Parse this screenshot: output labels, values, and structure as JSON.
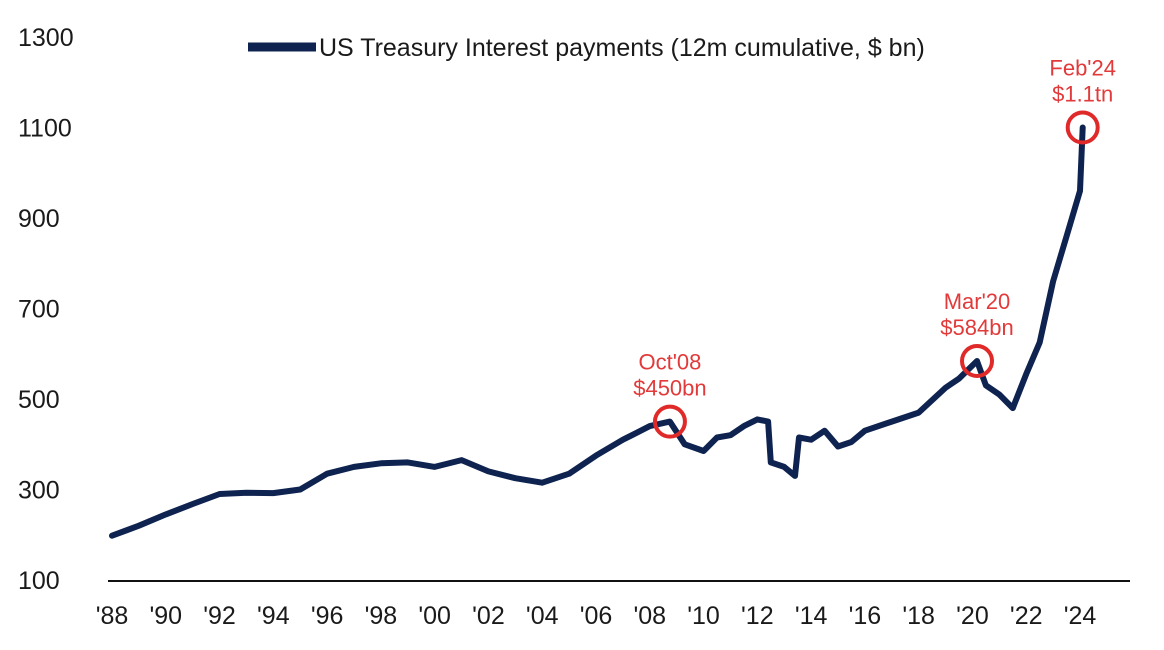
{
  "colors": {
    "line": "#0f2350",
    "annotation": "#e02a2a",
    "axis": "#111111",
    "text": "#1a1a1a"
  },
  "chart_data": {
    "type": "line",
    "title": "",
    "xlabel": "",
    "ylabel": "",
    "ylim": [
      100,
      1300
    ],
    "xlim": [
      1988,
      2024.5
    ],
    "grid": false,
    "legend_position": "top",
    "y_ticks": [
      "1300",
      "1100",
      "900",
      "700",
      "500",
      "300",
      "100"
    ],
    "x_ticks": [
      "'88",
      "'90",
      "'92",
      "'94",
      "'96",
      "'98",
      "'00",
      "'02",
      "'04",
      "'06",
      "'08",
      "'10",
      "'12",
      "'14",
      "'16",
      "'18",
      "'20",
      "'22",
      "'24"
    ],
    "series": [
      {
        "name": "US Treasury Interest payments (12m cumulative, $ bn)",
        "x": [
          1988.0,
          1989.0,
          1990.0,
          1991.0,
          1992.0,
          1993.0,
          1994.0,
          1995.0,
          1996.0,
          1997.0,
          1998.0,
          1999.0,
          2000.0,
          2001.0,
          2002.0,
          2003.0,
          2004.0,
          2005.0,
          2006.0,
          2007.0,
          2008.0,
          2008.75,
          2009.3,
          2010.0,
          2010.5,
          2011.0,
          2011.5,
          2012.0,
          2012.4,
          2012.5,
          2013.0,
          2013.4,
          2013.55,
          2014.0,
          2014.5,
          2015.0,
          2015.5,
          2016.0,
          2017.0,
          2018.0,
          2019.0,
          2019.5,
          2020.17,
          2020.5,
          2021.0,
          2021.5,
          2022.0,
          2022.5,
          2023.0,
          2023.5,
          2024.0,
          2024.1
        ],
        "values": [
          198,
          220,
          245,
          268,
          290,
          293,
          292,
          300,
          335,
          350,
          358,
          360,
          350,
          365,
          340,
          325,
          315,
          335,
          375,
          410,
          440,
          450,
          400,
          385,
          415,
          420,
          440,
          455,
          450,
          360,
          350,
          330,
          415,
          410,
          430,
          395,
          405,
          430,
          450,
          470,
          525,
          545,
          584,
          530,
          510,
          480,
          555,
          625,
          760,
          860,
          960,
          1100
        ]
      }
    ],
    "annotations": [
      {
        "label_line1": "Oct'08",
        "label_line2": "$450bn",
        "x": 2008.75,
        "y": 450
      },
      {
        "label_line1": "Mar'20",
        "label_line2": "$584bn",
        "x": 2020.17,
        "y": 584
      },
      {
        "label_line1": "Feb'24",
        "label_line2": "$1.1tn",
        "x": 2024.1,
        "y": 1100
      }
    ]
  }
}
